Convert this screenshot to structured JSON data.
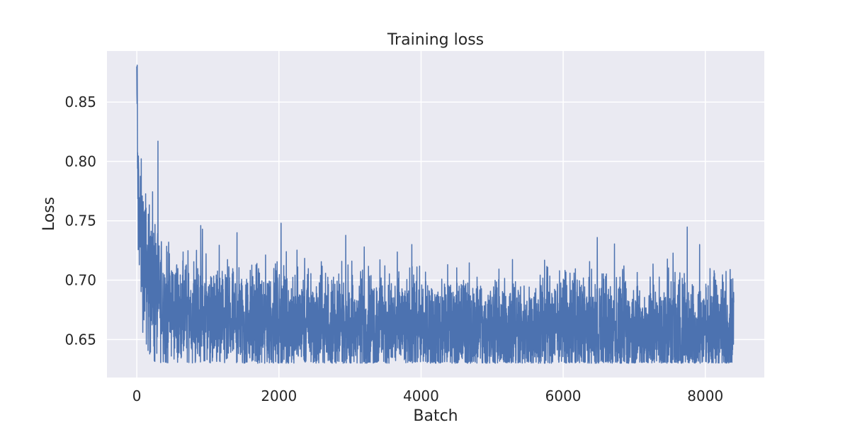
{
  "chart_data": {
    "type": "line",
    "title": "Training loss",
    "xlabel": "Batch",
    "ylabel": "Loss",
    "xlim": [
      -420,
      8830
    ],
    "ylim": [
      0.618,
      0.893
    ],
    "x_ticks": [
      0,
      2000,
      4000,
      6000,
      8000
    ],
    "y_ticks": [
      0.65,
      0.7,
      0.75,
      0.8,
      0.85
    ],
    "x_tick_labels": [
      "0",
      "2000",
      "4000",
      "6000",
      "8000"
    ],
    "y_tick_labels": [
      "0.65",
      "0.70",
      "0.75",
      "0.80",
      "0.85"
    ],
    "grid": true,
    "colors": {
      "line": "#4c72b0",
      "plot_bg": "#eaeaf2",
      "grid": "#ffffff"
    },
    "series": [
      {
        "x": [
          0,
          5,
          10,
          20,
          30,
          50,
          75,
          100,
          150,
          200,
          300,
          400,
          500,
          700,
          1000,
          1500,
          2000,
          2500,
          3000,
          4000,
          5000,
          6000,
          7000,
          8000,
          8400
        ],
        "y": [
          0.855,
          0.845,
          0.79,
          0.765,
          0.752,
          0.74,
          0.728,
          0.718,
          0.705,
          0.695,
          0.685,
          0.678,
          0.674,
          0.67,
          0.667,
          0.665,
          0.664,
          0.662,
          0.661,
          0.66,
          0.659,
          0.659,
          0.658,
          0.658,
          0.658
        ],
        "noise_lower_bound": 0.63,
        "spikes": [
          {
            "x": 0,
            "y": 0.88
          },
          {
            "x": 8,
            "y": 0.845
          },
          {
            "x": 900,
            "y": 0.746
          },
          {
            "x": 1410,
            "y": 0.74
          },
          {
            "x": 2030,
            "y": 0.748
          },
          {
            "x": 3200,
            "y": 0.728
          },
          {
            "x": 3870,
            "y": 0.73
          },
          {
            "x": 6480,
            "y": 0.736
          },
          {
            "x": 7920,
            "y": 0.73
          }
        ]
      }
    ]
  }
}
